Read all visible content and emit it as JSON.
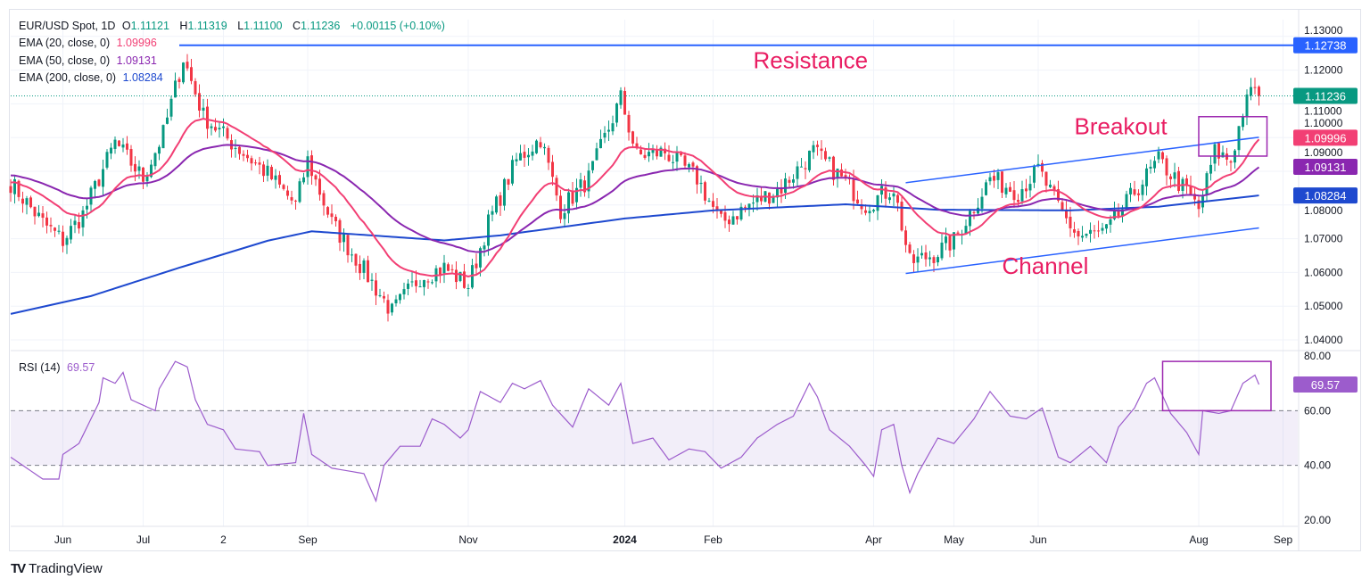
{
  "header": {
    "symbol": "EUR/USD Spot, 1D",
    "open_label": "O",
    "open": "1.11121",
    "high_label": "H",
    "high": "1.11319",
    "low_label": "L",
    "low": "1.11100",
    "close_label": "C",
    "close": "1.11236",
    "change": "+0.00115 (+0.10%)"
  },
  "indicators": [
    {
      "label": "EMA (20, close, 0)",
      "value": "1.09996",
      "color": "#f23f74"
    },
    {
      "label": "EMA (50, close, 0)",
      "value": "1.09131",
      "color": "#8a27b0"
    },
    {
      "label": "EMA (200, close, 0)",
      "value": "1.08284",
      "color": "#1e49cf"
    }
  ],
  "rsi": {
    "label": "RSI (14)",
    "value": "69.57",
    "color": "#9c5ccc"
  },
  "brand": "TradingView",
  "chart_data": {
    "type": "candlestick",
    "price_axis": {
      "ylim": [
        1.035,
        1.133
      ],
      "ticks": [
        "1.13000",
        "1.12000",
        "1.11000",
        "1.10000",
        "1.09000",
        "1.08000",
        "1.07000",
        "1.06000",
        "1.05000",
        "1.04000"
      ]
    },
    "rsi_axis": {
      "ylim": [
        13,
        83
      ],
      "ticks": [
        "80.00",
        "60.00",
        "40.00",
        "20.00"
      ],
      "band": [
        40,
        60
      ]
    },
    "time_ticks": [
      {
        "label": "Jun",
        "day": 13
      },
      {
        "label": "Jul",
        "day": 33
      },
      {
        "label": "2",
        "day": 53
      },
      {
        "label": "Sep",
        "day": 74
      },
      {
        "label": "Nov",
        "day": 114
      },
      {
        "label": "2024",
        "day": 153,
        "bold": true
      },
      {
        "label": "Feb",
        "day": 175
      },
      {
        "label": "Apr",
        "day": 215
      },
      {
        "label": "May",
        "day": 235
      },
      {
        "label": "Jun",
        "day": 256
      },
      {
        "label": "Aug",
        "day": 296
      },
      {
        "label": "Sep",
        "day": 317
      }
    ],
    "close_path": [
      [
        0,
        1.0866
      ],
      [
        8,
        1.0747
      ],
      [
        13,
        1.0694
      ],
      [
        18,
        1.0773
      ],
      [
        26,
        1.0985
      ],
      [
        33,
        1.0879
      ],
      [
        38,
        1.1011
      ],
      [
        43,
        1.1236
      ],
      [
        48,
        1.1064
      ],
      [
        55,
        1.0985
      ],
      [
        64,
        1.0892
      ],
      [
        71,
        1.08
      ],
      [
        74,
        1.0932
      ],
      [
        80,
        1.0747
      ],
      [
        86,
        1.0641
      ],
      [
        95,
        1.0482
      ],
      [
        102,
        1.0588
      ],
      [
        108,
        1.0614
      ],
      [
        114,
        1.0561
      ],
      [
        119,
        1.0747
      ],
      [
        126,
        1.0932
      ],
      [
        132,
        1.0998
      ],
      [
        137,
        1.0786
      ],
      [
        144,
        1.0879
      ],
      [
        152,
        1.1117
      ],
      [
        156,
        1.0945
      ],
      [
        163,
        1.0958
      ],
      [
        171,
        1.0879
      ],
      [
        177,
        1.0747
      ],
      [
        184,
        1.08
      ],
      [
        192,
        1.0852
      ],
      [
        200,
        1.0958
      ],
      [
        206,
        1.0892
      ],
      [
        213,
        1.08
      ],
      [
        220,
        1.0852
      ],
      [
        224,
        1.0628
      ],
      [
        230,
        1.0654
      ],
      [
        235,
        1.0694
      ],
      [
        244,
        1.0879
      ],
      [
        251,
        1.0839
      ],
      [
        256,
        1.0905
      ],
      [
        262,
        1.0773
      ],
      [
        266,
        1.0707
      ],
      [
        273,
        1.072
      ],
      [
        280,
        1.0839
      ],
      [
        286,
        1.0932
      ],
      [
        293,
        1.0839
      ],
      [
        296,
        1.0786
      ],
      [
        300,
        1.0958
      ],
      [
        304,
        1.0932
      ],
      [
        307,
        1.1077
      ],
      [
        310,
        1.1157
      ],
      [
        311,
        1.11236
      ]
    ],
    "ema200_path": [
      [
        0,
        1.0477
      ],
      [
        20,
        1.053
      ],
      [
        42,
        1.0614
      ],
      [
        64,
        1.0694
      ],
      [
        75,
        1.0722
      ],
      [
        108,
        1.0695
      ],
      [
        122,
        1.071
      ],
      [
        153,
        1.076
      ],
      [
        175,
        1.0784
      ],
      [
        208,
        1.0802
      ],
      [
        231,
        1.0786
      ],
      [
        264,
        1.0784
      ],
      [
        286,
        1.0795
      ],
      [
        311,
        1.08284
      ]
    ],
    "rsi_path": [
      [
        0,
        43
      ],
      [
        3,
        40
      ],
      [
        8,
        35
      ],
      [
        12,
        35
      ],
      [
        13,
        44
      ],
      [
        17,
        48
      ],
      [
        22,
        63
      ],
      [
        23,
        72
      ],
      [
        26,
        70
      ],
      [
        28,
        74
      ],
      [
        30,
        64
      ],
      [
        33,
        62
      ],
      [
        36,
        60
      ],
      [
        37,
        68
      ],
      [
        41,
        78
      ],
      [
        44,
        76
      ],
      [
        46,
        64
      ],
      [
        49,
        55
      ],
      [
        53,
        53
      ],
      [
        56,
        46
      ],
      [
        62,
        45
      ],
      [
        64,
        40
      ],
      [
        71,
        41
      ],
      [
        73,
        59
      ],
      [
        75,
        44
      ],
      [
        80,
        39
      ],
      [
        84,
        38
      ],
      [
        88,
        37
      ],
      [
        91,
        27
      ],
      [
        93,
        40
      ],
      [
        97,
        47
      ],
      [
        102,
        47
      ],
      [
        105,
        57
      ],
      [
        108,
        55
      ],
      [
        112,
        50
      ],
      [
        114,
        53
      ],
      [
        117,
        67
      ],
      [
        122,
        63
      ],
      [
        125,
        70
      ],
      [
        128,
        68
      ],
      [
        132,
        71
      ],
      [
        135,
        62
      ],
      [
        140,
        54
      ],
      [
        144,
        68
      ],
      [
        149,
        62
      ],
      [
        152,
        70
      ],
      [
        155,
        48
      ],
      [
        160,
        50
      ],
      [
        164,
        42
      ],
      [
        169,
        46
      ],
      [
        173,
        45
      ],
      [
        177,
        39
      ],
      [
        182,
        43
      ],
      [
        186,
        50
      ],
      [
        191,
        55
      ],
      [
        195,
        58
      ],
      [
        199,
        70
      ],
      [
        201,
        65
      ],
      [
        204,
        53
      ],
      [
        209,
        47
      ],
      [
        213,
        40
      ],
      [
        215,
        36
      ],
      [
        217,
        53
      ],
      [
        220,
        55
      ],
      [
        222,
        40
      ],
      [
        224,
        30
      ],
      [
        226,
        37
      ],
      [
        231,
        50
      ],
      [
        235,
        48
      ],
      [
        240,
        57
      ],
      [
        244,
        67
      ],
      [
        249,
        58
      ],
      [
        253,
        57
      ],
      [
        257,
        61
      ],
      [
        261,
        43
      ],
      [
        264,
        41
      ],
      [
        269,
        47
      ],
      [
        273,
        41
      ],
      [
        276,
        54
      ],
      [
        280,
        61
      ],
      [
        283,
        70
      ],
      [
        285,
        72
      ],
      [
        289,
        59
      ],
      [
        293,
        52
      ],
      [
        296,
        44
      ],
      [
        297,
        60
      ],
      [
        301,
        59
      ],
      [
        304,
        60
      ],
      [
        307,
        70
      ],
      [
        310,
        73
      ],
      [
        311,
        69.57
      ]
    ],
    "lines": {
      "resistance": {
        "price": 1.12738,
        "label": "1.12738",
        "from_day": 42
      },
      "channel_upper": [
        [
          223,
          1.0866
        ],
        [
          311,
          1.1001
        ]
      ],
      "channel_lower": [
        [
          223,
          1.0597
        ],
        [
          311,
          1.0732
        ]
      ]
    },
    "annotations": [
      {
        "text": "Resistance",
        "day": 185,
        "price": 1.1205
      },
      {
        "text": "Breakout",
        "day": 265,
        "price": 1.101
      },
      {
        "text": "Channel",
        "day": 247,
        "price": 1.0596
      }
    ],
    "boxes": {
      "breakout": {
        "days": [
          296,
          313
        ],
        "prices": [
          1.0945,
          1.1062
        ]
      },
      "rsi": {
        "days": [
          287,
          314
        ],
        "rsi": [
          60,
          78
        ]
      }
    },
    "last_price_label": {
      "value": "1.11236",
      "color": "#089981"
    }
  }
}
